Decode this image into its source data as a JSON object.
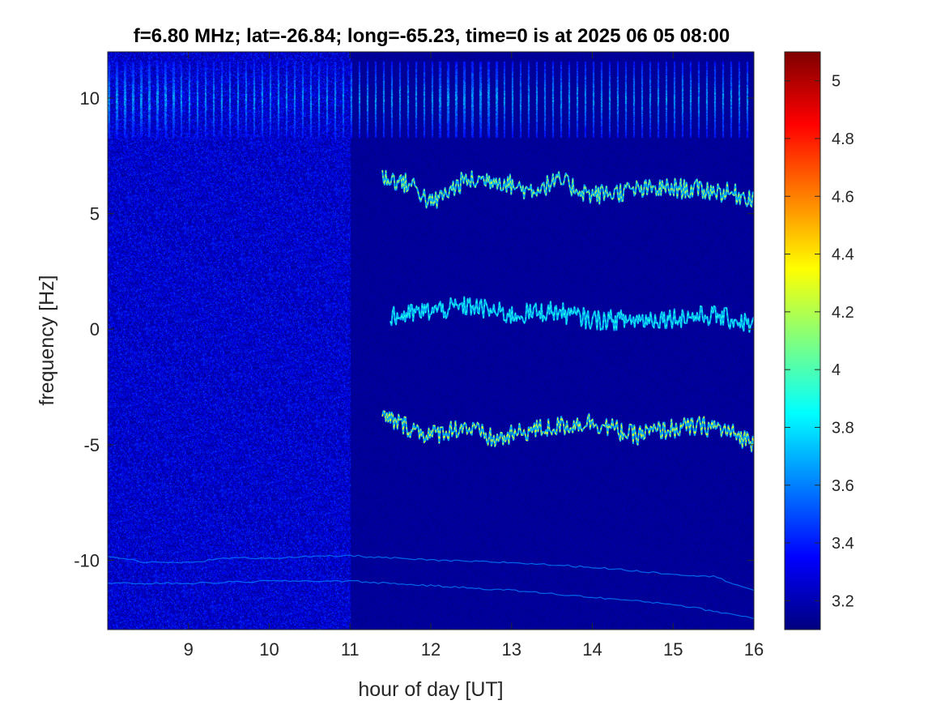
{
  "chart_data": {
    "type": "heatmap",
    "title": "f=6.80 MHz;  lat=-26.84; long=-65.23, time=0 is at 2025 06 05 08:00",
    "xlabel": "hour of day [UT]",
    "ylabel": "frequency [Hz]",
    "xlim": [
      8.0,
      16.0
    ],
    "ylim": [
      -13.0,
      12.0
    ],
    "x_ticks": [
      9,
      10,
      11,
      12,
      13,
      14,
      15,
      16
    ],
    "x_tick_labels": [
      "9",
      "10",
      "11",
      "12",
      "13",
      "14",
      "15",
      "16"
    ],
    "y_ticks": [
      10,
      5,
      0,
      -5,
      -10
    ],
    "y_tick_labels": [
      "10",
      "5",
      "0",
      "-5",
      "-10"
    ],
    "colorbar": {
      "range": [
        3.1,
        5.1
      ],
      "ticks": [
        5.0,
        4.8,
        4.6,
        4.4,
        4.2,
        4.0,
        3.8,
        3.6,
        3.4,
        3.2
      ],
      "tick_labels": [
        "5",
        "4.8",
        "4.6",
        "4.4",
        "4.2",
        "4",
        "3.8",
        "3.6",
        "3.4",
        "3.2"
      ],
      "colormap": "jet",
      "colors": [
        "#00007f",
        "#0000ff",
        "#00ffff",
        "#ffff00",
        "#ff0000",
        "#7f0000"
      ]
    },
    "background_level": 3.15,
    "noise_floor_region": {
      "x_range": [
        8.0,
        11.0
      ],
      "level": 3.3
    },
    "features": [
      {
        "name": "periodic bursts",
        "x_range": [
          8.0,
          16.0
        ],
        "y_range": [
          8.3,
          11.6
        ],
        "level": 3.7,
        "period_hours": 0.1
      },
      {
        "name": "trace",
        "x_range": [
          11.4,
          16.0
        ],
        "center_y": 6.1,
        "level": 4.2,
        "x": [
          11.4,
          11.8,
          12.0,
          12.4,
          12.8,
          13.2,
          13.6,
          14.0,
          14.5,
          15.0,
          15.5,
          16.0
        ],
        "y": [
          6.6,
          6.2,
          5.4,
          6.4,
          6.5,
          6.0,
          6.4,
          5.8,
          6.0,
          6.1,
          6.0,
          5.7
        ]
      },
      {
        "name": "trace",
        "x_range": [
          11.5,
          16.0
        ],
        "center_y": 0.6,
        "level": 3.9,
        "x": [
          11.5,
          12.0,
          12.5,
          13.0,
          13.5,
          14.0,
          14.5,
          15.0,
          15.5,
          16.0
        ],
        "y": [
          0.5,
          0.8,
          1.0,
          0.6,
          0.8,
          0.4,
          0.4,
          0.5,
          0.6,
          0.2
        ]
      },
      {
        "name": "trace",
        "x_range": [
          11.4,
          16.0
        ],
        "center_y": -4.3,
        "level": 4.3,
        "x": [
          11.4,
          12.0,
          12.4,
          12.8,
          13.2,
          13.6,
          14.0,
          14.5,
          15.0,
          15.5,
          16.0
        ],
        "y": [
          -3.8,
          -4.6,
          -4.2,
          -4.8,
          -4.4,
          -4.2,
          -4.0,
          -4.6,
          -4.3,
          -4.2,
          -4.9
        ]
      },
      {
        "name": "faint line",
        "level": 3.6,
        "x": [
          8.0,
          8.5,
          9.0,
          9.5,
          10.0,
          11.0,
          12.0,
          13.0,
          14.0,
          15.0,
          15.5,
          16.0
        ],
        "y": [
          -9.8,
          -10.1,
          -10.1,
          -9.9,
          -9.9,
          -9.8,
          -10.0,
          -10.1,
          -10.3,
          -10.6,
          -10.7,
          -11.3
        ]
      },
      {
        "name": "faint line",
        "level": 3.6,
        "x": [
          8.0,
          9.0,
          10.0,
          11.0,
          12.0,
          13.0,
          14.0,
          15.0,
          16.0
        ],
        "y": [
          -11.0,
          -11.0,
          -10.9,
          -10.9,
          -11.1,
          -11.3,
          -11.6,
          -11.9,
          -12.5
        ]
      }
    ]
  }
}
